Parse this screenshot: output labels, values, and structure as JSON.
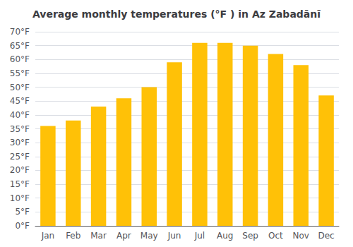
{
  "chart_data": {
    "type": "bar",
    "title": "Average monthly temperatures (°F ) in Az Zabadānī",
    "categories": [
      "Jan",
      "Feb",
      "Mar",
      "Apr",
      "May",
      "Jun",
      "Jul",
      "Aug",
      "Sep",
      "Oct",
      "Nov",
      "Dec"
    ],
    "values": [
      36,
      38,
      43,
      46,
      50,
      59,
      66,
      66,
      65,
      62,
      58,
      47
    ],
    "color": "#FFC107",
    "ylim": [
      0,
      70
    ],
    "yticks": [
      {
        "value": 0,
        "label": "0°F"
      },
      {
        "value": 5,
        "label": "5°F"
      },
      {
        "value": 10,
        "label": "10°F"
      },
      {
        "value": 15,
        "label": "15°F"
      },
      {
        "value": 20,
        "label": "20°F"
      },
      {
        "value": 25,
        "label": "25°F"
      },
      {
        "value": 30,
        "label": "30°F"
      },
      {
        "value": 35,
        "label": "35°F"
      },
      {
        "value": 40,
        "label": "40°F"
      },
      {
        "value": 45,
        "label": "45°F"
      },
      {
        "value": 50,
        "label": "50°F"
      },
      {
        "value": 55,
        "label": "55°F"
      },
      {
        "value": 60,
        "label": "60°F"
      },
      {
        "value": 65,
        "label": "65°F"
      },
      {
        "value": 70,
        "label": "70°F"
      }
    ],
    "grid": true
  }
}
